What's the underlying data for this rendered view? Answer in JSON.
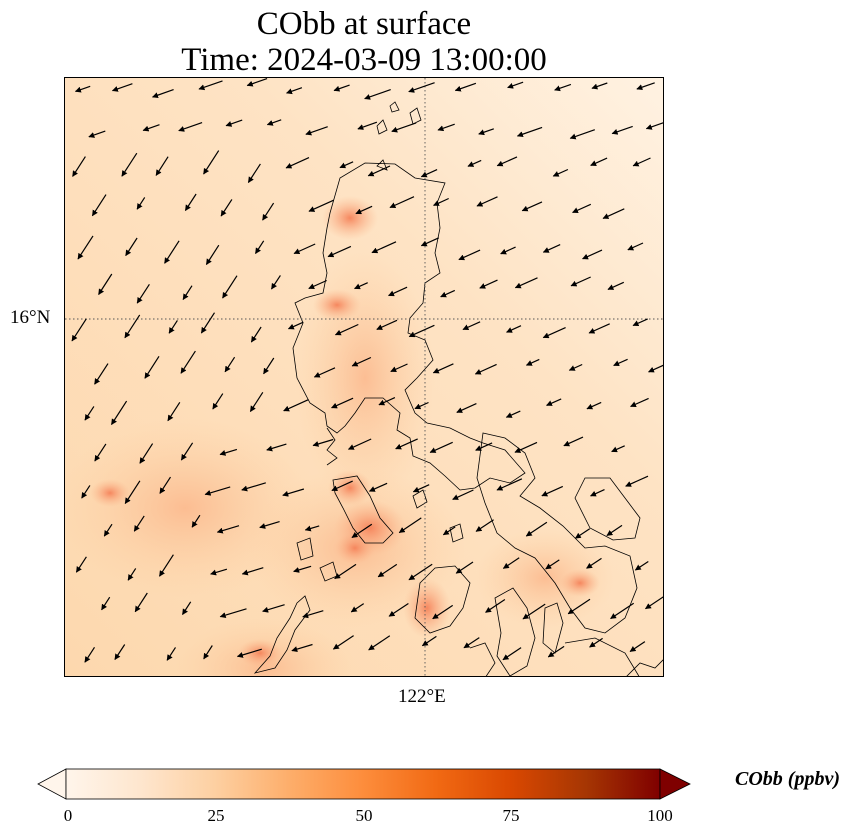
{
  "title": {
    "line1": "CObb at surface",
    "line2": "Time: 2024-03-09 13:00:00"
  },
  "map": {
    "lat_tick_label": "16°N",
    "lon_tick_label": "122°E",
    "field": "CObb",
    "arrow_color": "#000000",
    "coastline_color": "#000000",
    "gridline_style": "dotted"
  },
  "colorbar": {
    "label": "CObb (ppbv)",
    "ticks": [
      "0",
      "25",
      "50",
      "75",
      "100"
    ],
    "min": 0,
    "max": 100,
    "extend": "both",
    "colormap": "Oranges",
    "colors": [
      "#fff5eb",
      "#fee6ce",
      "#fdd0a2",
      "#fdae6b",
      "#fd8d3c",
      "#f16913",
      "#d94801",
      "#a63603",
      "#7f0000"
    ]
  }
}
